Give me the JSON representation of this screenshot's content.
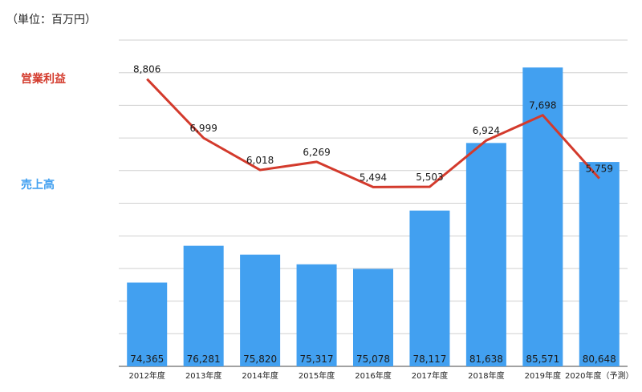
{
  "unit_label": "（単位：百万円）",
  "legend": {
    "line_label": "営業利益",
    "bar_label": "売上高"
  },
  "colors": {
    "bar": "#42a0f0",
    "line": "#d33a2c",
    "grid": "#d0d0d0",
    "axis": "#444444"
  },
  "chart_data": {
    "type": "bar+line",
    "categories": [
      "2012年度",
      "2013年度",
      "2014年度",
      "2015年度",
      "2016年度",
      "2017年度",
      "2018年度",
      "2019年度",
      "2020年度（予測）"
    ],
    "series": [
      {
        "name": "売上高",
        "type": "bar",
        "values": [
          74365,
          76281,
          75820,
          75317,
          75078,
          78117,
          81638,
          85571,
          80648
        ]
      },
      {
        "name": "営業利益",
        "type": "line",
        "values": [
          8806,
          6999,
          6018,
          6269,
          5494,
          5503,
          6924,
          7698,
          5759
        ]
      }
    ],
    "bar_labels": [
      "74,365",
      "76,281",
      "75,820",
      "75,317",
      "75,078",
      "78,117",
      "81,638",
      "85,571",
      "80,648"
    ],
    "line_labels": [
      "8,806",
      "6,999",
      "6,018",
      "6,269",
      "5,494",
      "5,503",
      "6,924",
      "7,698",
      "5,759"
    ],
    "bar_axis_range": [
      70000,
      87000
    ],
    "line_axis_range": [
      0,
      10000
    ],
    "gridlines": true,
    "legend_position": "left"
  }
}
